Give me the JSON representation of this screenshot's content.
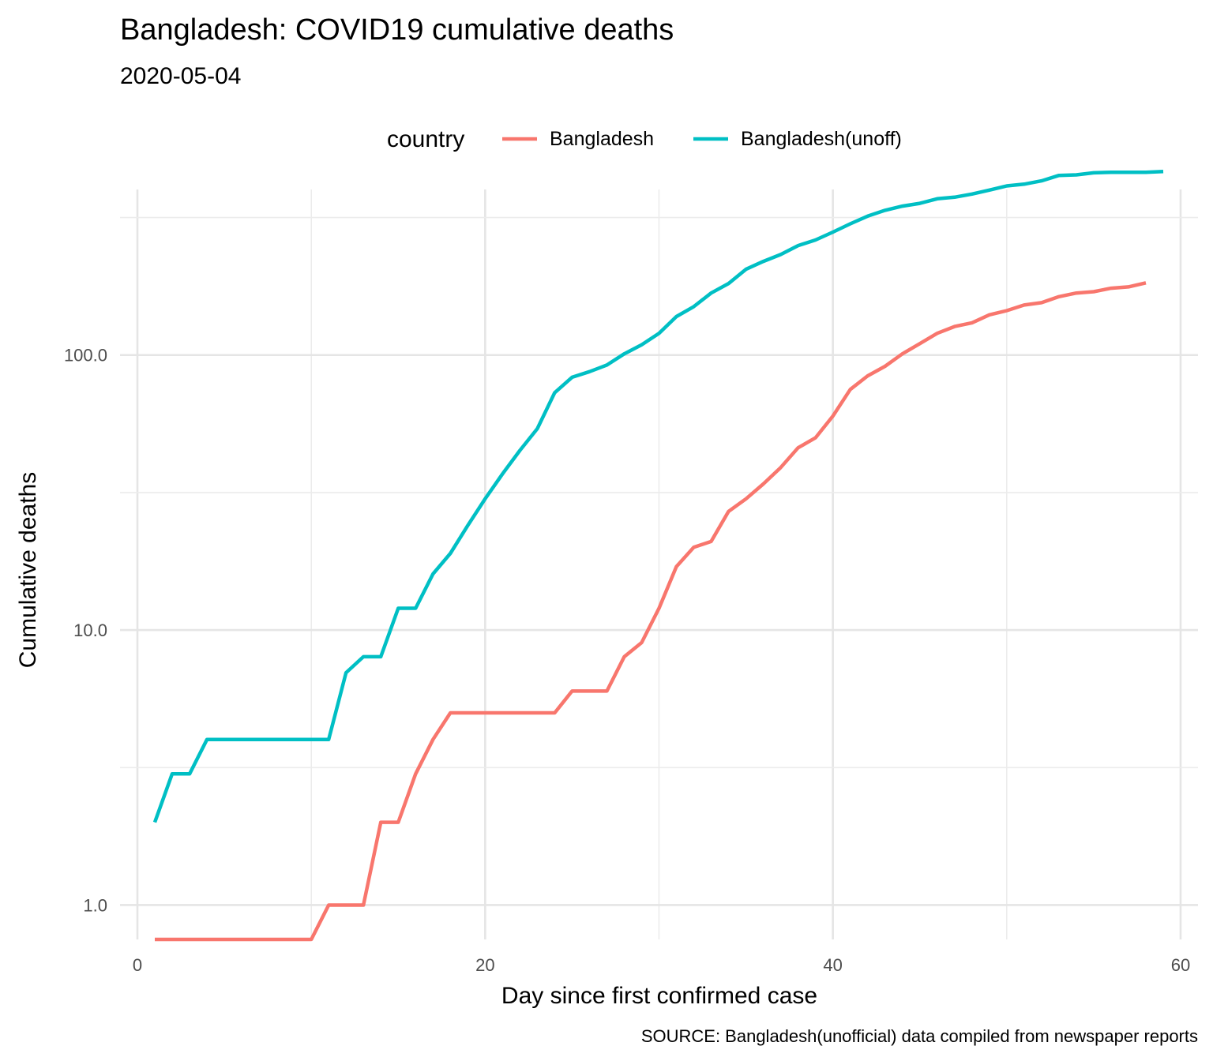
{
  "chart_data": {
    "type": "line",
    "title": "Bangladesh: COVID19 cumulative deaths",
    "subtitle": "2020-05-04",
    "xlabel": "Day since first confirmed case",
    "ylabel": "Cumulative deaths",
    "caption": "SOURCE: Bangladesh(unofficial) data compiled from newspaper reports",
    "legend": {
      "title": "country",
      "position": "top"
    },
    "y_scale": "log10",
    "xlim": [
      -1,
      61
    ],
    "ylim": [
      0.75,
      400
    ],
    "x_ticks": [
      0,
      20,
      40,
      60
    ],
    "x_tick_labels": [
      "0",
      "20",
      "40",
      "60"
    ],
    "y_ticks": [
      1,
      10,
      100
    ],
    "y_tick_labels": [
      "1.0",
      "10.0",
      "100.0"
    ],
    "grid": true,
    "series": [
      {
        "name": "Bangladesh",
        "color": "#F8766D",
        "x": [
          1,
          2,
          3,
          4,
          5,
          6,
          7,
          8,
          9,
          10,
          11,
          12,
          13,
          14,
          15,
          16,
          17,
          18,
          19,
          20,
          21,
          22,
          23,
          24,
          25,
          26,
          27,
          28,
          29,
          30,
          31,
          32,
          33,
          34,
          35,
          36,
          37,
          38,
          39,
          40,
          41,
          42,
          43,
          44,
          45,
          46,
          47,
          48,
          49,
          50,
          51,
          52,
          53,
          54,
          55,
          56,
          57,
          58
        ],
        "y": [
          0.75,
          0.75,
          0.75,
          0.75,
          0.75,
          0.75,
          0.75,
          0.75,
          0.75,
          0.75,
          1,
          1,
          1,
          2,
          2,
          3,
          4,
          5,
          5,
          5,
          5,
          5,
          5,
          5,
          6,
          6,
          6,
          8,
          9,
          12,
          17,
          20,
          21,
          27,
          30,
          34,
          39,
          46,
          50,
          60,
          75,
          84,
          91,
          101,
          110,
          120,
          127,
          131,
          140,
          145,
          152,
          155,
          163,
          168,
          170,
          175,
          177,
          183
        ]
      },
      {
        "name": "Bangladesh(unoff)",
        "color": "#00BFC4",
        "x": [
          1,
          2,
          3,
          4,
          5,
          6,
          7,
          8,
          9,
          10,
          11,
          12,
          13,
          14,
          15,
          16,
          17,
          18,
          19,
          20,
          21,
          22,
          23,
          24,
          25,
          26,
          27,
          28,
          29,
          30,
          31,
          32,
          33,
          34,
          35,
          36,
          37,
          38,
          39,
          40,
          41,
          42,
          43,
          44,
          45,
          46,
          47,
          48,
          49,
          50,
          51,
          52,
          53,
          54,
          55,
          56,
          57,
          58,
          59
        ],
        "y": [
          2,
          3,
          3,
          4,
          4,
          4,
          4,
          4,
          4,
          4,
          4,
          7,
          8,
          8,
          12,
          12,
          16,
          19,
          24,
          30,
          37,
          45,
          54,
          73,
          83,
          87,
          92,
          101,
          109,
          120,
          138,
          150,
          168,
          182,
          205,
          219,
          232,
          250,
          262,
          280,
          300,
          320,
          336,
          348,
          356,
          370,
          375,
          385,
          398,
          412,
          418,
          430,
          450,
          452,
          460,
          462,
          462,
          462,
          465
        ]
      }
    ]
  }
}
